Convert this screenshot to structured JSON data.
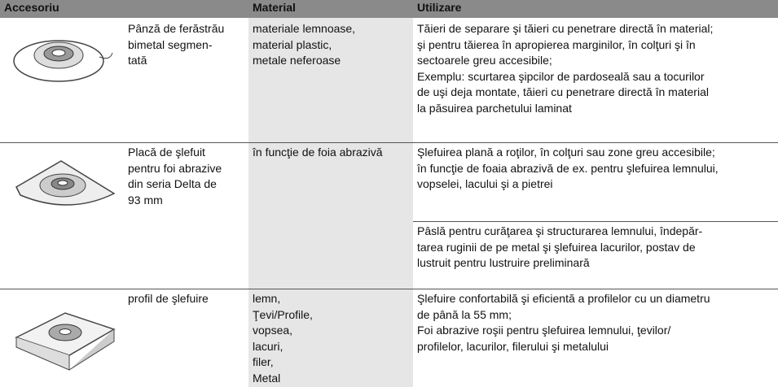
{
  "header": {
    "columns": [
      "Accesoriu",
      "Material",
      "Utilizare"
    ]
  },
  "table": {
    "rows": [
      {
        "accessory": [
          "Pânză de ferăstrău",
          "bimetal segmen-",
          "tată"
        ],
        "material": [
          "materiale lemnoase,",
          "material plastic,",
          "metale neferoase"
        ],
        "usage": [
          [
            "Tăieri de separare şi tăieri cu penetrare directă în material;",
            "şi pentru tăierea în apropierea marginilor, în colţuri şi în",
            "sectoarele greu accesibile;",
            "Exemplu: scurtarea şipcilor de pardoseală sau a tocurilor",
            "de uşi deja montate, tăieri cu penetrare directă în material",
            "la păsuirea parchetului laminat"
          ]
        ]
      },
      {
        "accessory": [
          "Placă de şlefuit",
          "pentru foi abrazive",
          "din seria Delta de",
          "93 mm"
        ],
        "material": [
          "în funcţie de foia abrazivă"
        ],
        "usage": [
          [
            "Şlefuirea plană a roţilor, în colţuri sau zone greu accesibile;",
            "în funcţie de foaia abrazivă de ex. pentru şlefuirea lemnului,",
            "vopselei, lacului şi a pietrei"
          ],
          [
            "Pâslă pentru curăţarea şi structurarea lemnului, îndepăr-",
            "tarea ruginii de pe metal şi şlefuirea lacurilor, postav de",
            "lustruit pentru lustruire preliminară"
          ]
        ]
      },
      {
        "accessory": [
          "profil de şlefuire"
        ],
        "material": [
          "lemn,",
          "Ţevi/Profile,",
          "vopsea,",
          "lacuri,",
          "filer,",
          "Metal"
        ],
        "usage": [
          [
            "Şlefuire confortabilă şi eficientă a profilelor cu un diametru",
            "de până la 55 mm;",
            "Foi abrazive roşii pentru şlefuirea lemnului, ţevilor/",
            "profilelor, lacurilor, filerului şi metalului"
          ]
        ]
      }
    ]
  }
}
